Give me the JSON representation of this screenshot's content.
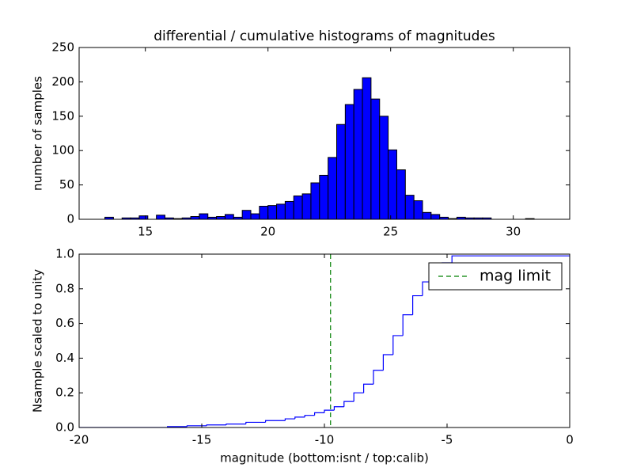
{
  "chart_data": [
    {
      "type": "histogram",
      "title": "differential / cumulative histograms of magnitudes",
      "ylabel": "number of samples",
      "bins": [
        13.35,
        13.7,
        14.05,
        14.4,
        14.75,
        15.1,
        15.45,
        15.8,
        16.15,
        16.5,
        16.85,
        17.2,
        17.55,
        17.9,
        18.25,
        18.6,
        18.95,
        19.3,
        19.65,
        20.0,
        20.35,
        20.7,
        21.05,
        21.4,
        21.75,
        22.1,
        22.45,
        22.8,
        23.15,
        23.5,
        23.85,
        24.2,
        24.55,
        24.9,
        25.25,
        25.6,
        25.95,
        26.3,
        26.65,
        27.0,
        27.35,
        27.7,
        28.05,
        28.4,
        28.75,
        29.1,
        29.45,
        29.8,
        30.15,
        30.5,
        30.85
      ],
      "values": [
        3,
        0,
        2,
        2,
        5,
        0,
        6,
        2,
        1,
        2,
        4,
        8,
        3,
        4,
        7,
        3,
        13,
        8,
        19,
        20,
        22,
        26,
        34,
        37,
        53,
        64,
        90,
        138,
        167,
        189,
        206,
        175,
        150,
        101,
        72,
        35,
        27,
        10,
        7,
        3,
        1,
        3,
        2,
        2,
        2,
        0,
        0,
        0,
        0,
        1
      ],
      "color": "#0000ff",
      "xlim": [
        12.3,
        32.3
      ],
      "ylim": [
        0,
        250
      ],
      "xticks": [
        15,
        20,
        25,
        30
      ],
      "yticks": [
        0,
        50,
        100,
        150,
        200,
        250
      ]
    },
    {
      "type": "step",
      "xlabel": "magnitude (bottom:isnt / top:calib)",
      "ylabel": "Nsample scaled to unity",
      "x": [
        -20,
        -16.4,
        -15.6,
        -14.8,
        -14.0,
        -13.2,
        -12.4,
        -11.6,
        -11.2,
        -10.8,
        -10.4,
        -10.0,
        -9.6,
        -9.2,
        -8.8,
        -8.4,
        -8.0,
        -7.6,
        -7.2,
        -6.8,
        -6.4,
        -6.0,
        -5.6,
        -5.2,
        -4.8
      ],
      "values": [
        0,
        0.005,
        0.01,
        0.015,
        0.02,
        0.03,
        0.04,
        0.05,
        0.06,
        0.07,
        0.085,
        0.1,
        0.12,
        0.15,
        0.2,
        0.25,
        0.33,
        0.42,
        0.53,
        0.65,
        0.76,
        0.84,
        0.9,
        0.95,
        0.99
      ],
      "color": "#0000ff",
      "xlim": [
        -20,
        0
      ],
      "ylim": [
        0,
        1
      ],
      "xticks": [
        -20,
        -15,
        -10,
        -5,
        0
      ],
      "yticks": [
        {
          "value": 0,
          "label": "0.0"
        },
        0.2,
        0.4,
        0.6,
        0.8,
        {
          "value": 1,
          "label": "1.0"
        }
      ],
      "vlines": [
        {
          "name": "mag limit",
          "x": -9.75,
          "color": "#008000"
        }
      ],
      "legend": "upper right"
    }
  ]
}
